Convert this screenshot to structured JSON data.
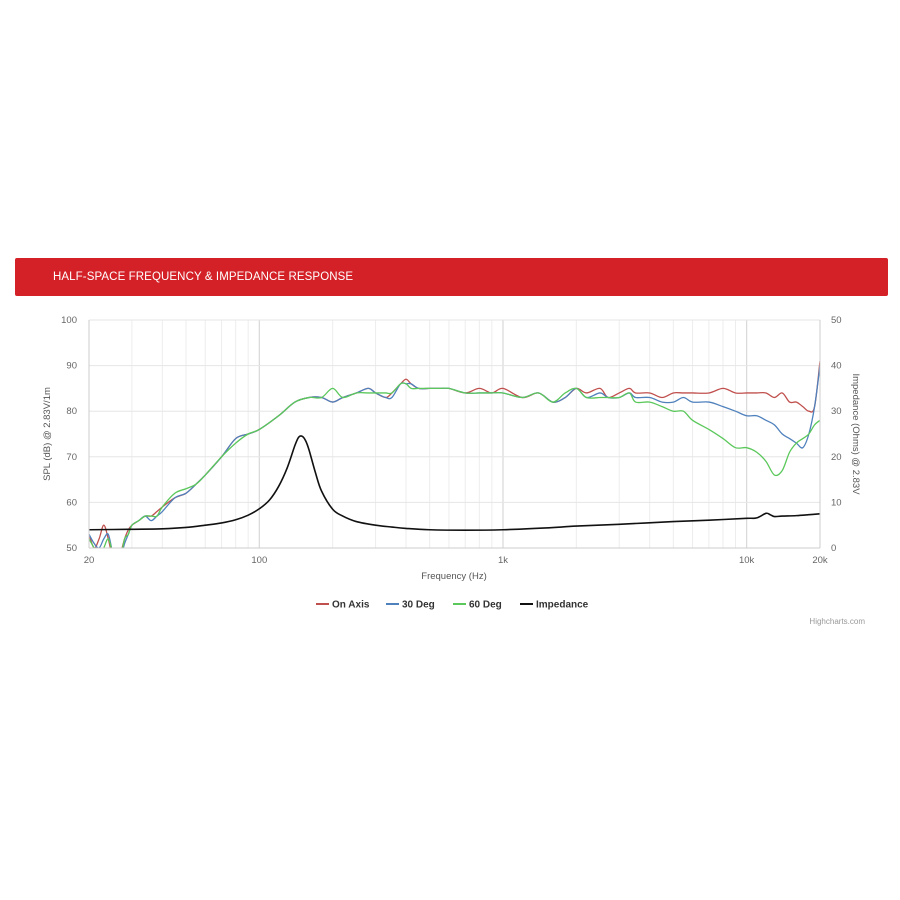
{
  "header": {
    "title": "HALF-SPACE FREQUENCY & IMPEDANCE RESPONSE"
  },
  "credits": "Highcharts.com",
  "colors": {
    "banner": "#d42127",
    "on_axis": "#c0504d",
    "deg30": "#4f81bd",
    "deg60": "#5bc85b",
    "impedance": "#111111"
  },
  "chart_data": {
    "type": "line",
    "xlabel": "Frequency (Hz)",
    "ylabel": "SPL (dB) @ 2.83V/1m",
    "y2label": "Impedance (Ohms) @ 2.83V",
    "xscale": "log",
    "xlim": [
      20,
      20000
    ],
    "ylim": [
      50,
      100
    ],
    "y2lim": [
      0,
      50
    ],
    "x_tick_values": [
      20,
      100,
      1000,
      10000,
      20000
    ],
    "x_tick_labels": [
      "20",
      "100",
      "1k",
      "10k",
      "20k"
    ],
    "y_ticks": [
      "50",
      "60",
      "70",
      "80",
      "90",
      "100"
    ],
    "y2_ticks": [
      "0",
      "10",
      "20",
      "30",
      "40",
      "50"
    ],
    "grid": true,
    "legend_position": "bottom-center",
    "series": [
      {
        "name": "On Axis",
        "axis": "left",
        "color": "#c0504d",
        "x": [
          20,
          21,
          22,
          23,
          24,
          25,
          26,
          27,
          28,
          29,
          30,
          32,
          34,
          36,
          38,
          40,
          45,
          50,
          55,
          60,
          70,
          80,
          90,
          100,
          120,
          140,
          160,
          180,
          200,
          220,
          250,
          280,
          300,
          330,
          350,
          380,
          400,
          420,
          450,
          500,
          550,
          600,
          700,
          800,
          900,
          1000,
          1200,
          1400,
          1600,
          1800,
          2000,
          2200,
          2500,
          2700,
          3000,
          3300,
          3500,
          4000,
          4500,
          5000,
          5500,
          6000,
          7000,
          8000,
          9000,
          10000,
          11000,
          12000,
          13000,
          14000,
          15000,
          16000,
          17000,
          18000,
          19000,
          20000
        ],
        "y": [
          53,
          50,
          52,
          55,
          52,
          48,
          47,
          49,
          52,
          54,
          55,
          56,
          57,
          57,
          58,
          59,
          61,
          62,
          64,
          66,
          70,
          74,
          75,
          76,
          79,
          82,
          83,
          83,
          82,
          83,
          84,
          85,
          84,
          83,
          84,
          86,
          87,
          86,
          85,
          85,
          85,
          85,
          84,
          85,
          84,
          85,
          83,
          84,
          82,
          83,
          85,
          84,
          85,
          83,
          84,
          85,
          84,
          84,
          83,
          84,
          84,
          84,
          84,
          85,
          84,
          84,
          84,
          84,
          83,
          84,
          82,
          82,
          81,
          80,
          81,
          91
        ]
      },
      {
        "name": "30 Deg",
        "axis": "left",
        "color": "#4f81bd",
        "x": [
          20,
          21,
          22,
          23,
          24,
          25,
          26,
          27,
          28,
          29,
          30,
          32,
          34,
          36,
          38,
          40,
          45,
          50,
          55,
          60,
          70,
          80,
          90,
          100,
          120,
          140,
          160,
          180,
          200,
          220,
          250,
          280,
          300,
          330,
          350,
          380,
          400,
          420,
          450,
          500,
          550,
          600,
          700,
          800,
          900,
          1000,
          1200,
          1400,
          1600,
          1800,
          2000,
          2200,
          2500,
          2700,
          3000,
          3300,
          3500,
          4000,
          4500,
          5000,
          5500,
          6000,
          7000,
          8000,
          9000,
          10000,
          11000,
          12000,
          13000,
          14000,
          15000,
          16000,
          17000,
          18000,
          19000,
          20000
        ],
        "y": [
          53,
          51,
          50,
          52,
          53,
          49,
          47,
          48,
          51,
          53,
          55,
          56,
          57,
          56,
          57,
          58,
          61,
          62,
          64,
          66,
          70,
          74,
          75,
          76,
          79,
          82,
          83,
          83,
          82,
          83,
          84,
          85,
          84,
          83,
          83,
          86,
          86,
          86,
          85,
          85,
          85,
          85,
          84,
          84,
          84,
          84,
          83,
          84,
          82,
          83,
          85,
          83,
          84,
          83,
          83,
          84,
          83,
          83,
          82,
          82,
          83,
          82,
          82,
          81,
          80,
          79,
          79,
          78,
          77,
          75,
          74,
          73,
          72,
          75,
          81,
          90
        ]
      },
      {
        "name": "60 Deg",
        "axis": "left",
        "color": "#5bc85b",
        "x": [
          20,
          21,
          22,
          23,
          24,
          25,
          26,
          27,
          28,
          29,
          30,
          32,
          34,
          36,
          38,
          40,
          45,
          50,
          55,
          60,
          70,
          80,
          90,
          100,
          120,
          140,
          160,
          180,
          200,
          220,
          250,
          280,
          300,
          330,
          350,
          380,
          400,
          420,
          450,
          500,
          550,
          600,
          700,
          800,
          900,
          1000,
          1200,
          1400,
          1600,
          1800,
          2000,
          2200,
          2500,
          2700,
          3000,
          3300,
          3500,
          4000,
          4500,
          5000,
          5500,
          6000,
          7000,
          8000,
          9000,
          10000,
          11000,
          12000,
          13000,
          14000,
          15000,
          16000,
          17000,
          18000,
          19000,
          20000
        ],
        "y": [
          52,
          50,
          48,
          50,
          52,
          49,
          47,
          48,
          52,
          53,
          55,
          56,
          57,
          57,
          57,
          59,
          62,
          63,
          64,
          66,
          70,
          73,
          75,
          76,
          79,
          82,
          83,
          83,
          85,
          83,
          84,
          84,
          84,
          84,
          84,
          86,
          86,
          85,
          85,
          85,
          85,
          85,
          84,
          84,
          84,
          84,
          83,
          84,
          82,
          84,
          85,
          83,
          83,
          83,
          83,
          84,
          82,
          82,
          81,
          80,
          80,
          78,
          76,
          74,
          72,
          72,
          71,
          69,
          66,
          67,
          71,
          73,
          74,
          75,
          77,
          78
        ]
      },
      {
        "name": "Impedance",
        "axis": "right",
        "color": "#111111",
        "x": [
          20,
          30,
          40,
          50,
          60,
          70,
          80,
          90,
          100,
          110,
          120,
          130,
          140,
          145,
          150,
          155,
          160,
          170,
          180,
          200,
          220,
          250,
          300,
          350,
          400,
          500,
          700,
          1000,
          1500,
          2000,
          3000,
          5000,
          7000,
          10000,
          11000,
          12000,
          12500,
          13000,
          14000,
          16000,
          18000,
          20000
        ],
        "y": [
          4,
          4.1,
          4.2,
          4.5,
          5,
          5.5,
          6.2,
          7.2,
          8.6,
          10.5,
          13.5,
          17.5,
          22.5,
          24.3,
          24.5,
          23.5,
          21.5,
          16.5,
          12.5,
          8.5,
          7,
          5.8,
          5,
          4.6,
          4.3,
          4,
          3.9,
          4,
          4.4,
          4.8,
          5.2,
          5.8,
          6.1,
          6.5,
          6.6,
          7.6,
          7.3,
          6.9,
          7,
          7.1,
          7.3,
          7.5
        ]
      }
    ]
  }
}
